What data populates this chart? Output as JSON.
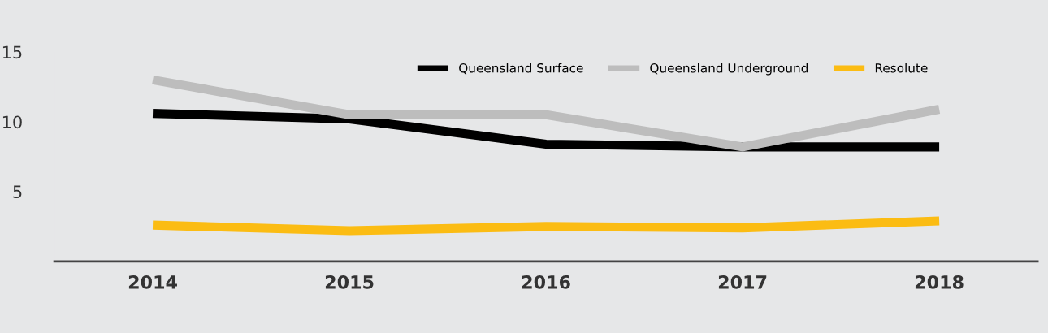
{
  "chart_data": {
    "type": "line",
    "categories": [
      "2014",
      "2015",
      "2016",
      "2017",
      "2018"
    ],
    "series": [
      {
        "name": "Queensland Surface",
        "color": "#000000",
        "values": [
          10.6,
          10.2,
          8.4,
          8.2,
          8.2
        ]
      },
      {
        "name": "Queensland Underground",
        "color": "#bdbdbd",
        "values": [
          13.0,
          10.5,
          10.5,
          8.2,
          10.9
        ]
      },
      {
        "name": "Resolute",
        "color": "#fbbc13",
        "values": [
          2.6,
          2.2,
          2.5,
          2.4,
          2.9
        ]
      }
    ],
    "ylim": [
      0,
      15
    ],
    "yticks": [
      5,
      10,
      15
    ],
    "grid": false,
    "legend": "top right",
    "marker": "none",
    "line_style": "solid"
  }
}
